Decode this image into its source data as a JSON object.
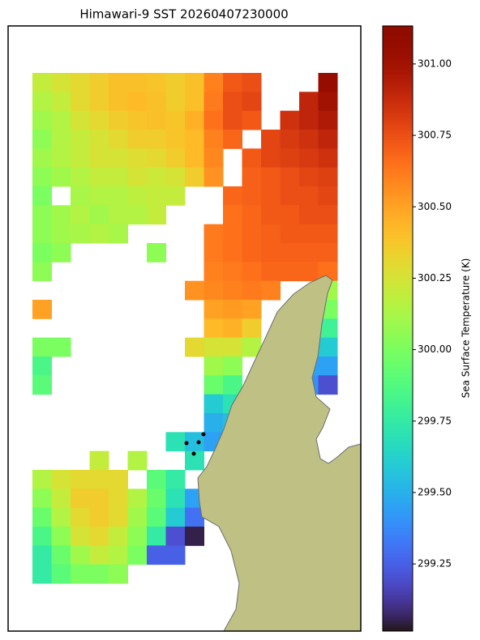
{
  "chart_data": {
    "type": "heatmap",
    "title": "Himawari-9 SST 20260407230000",
    "colorbar_label": "Sea Surface Temperature (K)",
    "colormap": "turbo",
    "vlim": [
      299.015,
      301.133
    ],
    "ticks": [
      {
        "value": 299.25,
        "label": "299.25"
      },
      {
        "value": 299.5,
        "label": "299.50"
      },
      {
        "value": 299.75,
        "label": "299.75"
      },
      {
        "value": 300,
        "label": "300.00"
      },
      {
        "value": 300.25,
        "label": "300.25"
      },
      {
        "value": 300.5,
        "label": "300.50"
      },
      {
        "value": 300.75,
        "label": "300.75"
      },
      {
        "value": 301,
        "label": "301.00"
      }
    ],
    "values": [
      [
        300.2,
        300.25,
        300.3,
        300.35,
        300.4,
        300.4,
        300.38,
        300.35,
        300.4,
        300.6,
        300.72,
        300.75,
        null,
        null,
        null,
        301.05
      ],
      [
        300.15,
        300.2,
        300.3,
        300.35,
        300.4,
        300.42,
        300.4,
        300.35,
        300.4,
        300.62,
        300.75,
        300.78,
        null,
        null,
        300.9,
        301.0
      ],
      [
        300.1,
        300.15,
        300.25,
        300.3,
        300.35,
        300.38,
        300.4,
        300.38,
        300.45,
        300.65,
        300.75,
        300.72,
        null,
        300.85,
        300.9,
        300.95
      ],
      [
        300.05,
        300.15,
        300.2,
        300.25,
        300.3,
        300.35,
        300.35,
        300.38,
        300.42,
        300.6,
        300.68,
        null,
        300.78,
        300.82,
        300.85,
        300.9
      ],
      [
        300.1,
        300.15,
        300.2,
        300.25,
        300.25,
        300.28,
        300.3,
        300.35,
        300.42,
        300.58,
        null,
        300.72,
        300.78,
        300.8,
        300.82,
        300.85
      ],
      [
        300.05,
        300.1,
        300.15,
        300.2,
        300.2,
        300.25,
        300.22,
        300.25,
        300.35,
        300.55,
        null,
        300.7,
        300.72,
        300.75,
        300.78,
        300.8
      ],
      [
        300.0,
        null,
        300.12,
        300.15,
        300.15,
        300.18,
        300.2,
        300.2,
        null,
        null,
        300.68,
        300.7,
        300.72,
        300.75,
        300.75,
        300.78
      ],
      [
        300.05,
        300.1,
        300.15,
        300.1,
        300.15,
        300.15,
        300.2,
        null,
        null,
        null,
        300.65,
        300.68,
        300.72,
        300.72,
        300.75,
        300.75
      ],
      [
        300.05,
        300.1,
        300.12,
        300.15,
        300.12,
        null,
        null,
        null,
        null,
        300.62,
        300.65,
        300.68,
        300.7,
        300.72,
        300.72,
        300.72
      ],
      [
        300.0,
        300.05,
        null,
        null,
        null,
        null,
        300.05,
        null,
        null,
        300.62,
        300.65,
        300.68,
        300.7,
        300.7,
        300.7,
        300.7
      ],
      [
        300.05,
        null,
        null,
        null,
        null,
        null,
        null,
        null,
        null,
        300.6,
        300.62,
        300.65,
        300.68,
        300.68,
        300.68,
        300.65
      ],
      [
        null,
        null,
        null,
        null,
        null,
        null,
        null,
        null,
        300.55,
        300.58,
        300.6,
        300.62,
        300.6,
        null,
        null,
        300.1
      ],
      [
        300.5,
        null,
        null,
        null,
        null,
        null,
        null,
        null,
        null,
        300.5,
        300.52,
        300.5,
        null,
        null,
        null,
        300.0
      ],
      [
        null,
        null,
        null,
        null,
        null,
        null,
        null,
        null,
        null,
        300.42,
        300.45,
        300.35,
        null,
        null,
        null,
        299.8
      ],
      [
        300.0,
        300.0,
        null,
        null,
        null,
        null,
        null,
        null,
        300.3,
        300.25,
        300.25,
        300.15,
        null,
        null,
        299.55,
        299.6
      ],
      [
        299.85,
        null,
        null,
        null,
        null,
        null,
        null,
        null,
        null,
        300.1,
        300.05,
        null,
        null,
        null,
        299.45,
        299.45
      ],
      [
        299.9,
        null,
        null,
        null,
        null,
        null,
        null,
        null,
        null,
        299.95,
        299.85,
        null,
        null,
        null,
        299.4,
        299.2
      ],
      [
        null,
        null,
        null,
        null,
        null,
        null,
        null,
        null,
        null,
        299.6,
        299.7,
        null,
        null,
        null,
        null,
        null
      ],
      [
        null,
        null,
        null,
        null,
        null,
        null,
        null,
        null,
        null,
        299.5,
        299.55,
        null,
        null,
        null,
        null,
        null
      ],
      [
        null,
        null,
        null,
        null,
        null,
        null,
        null,
        299.7,
        299.55,
        299.45,
        null,
        null,
        null,
        null,
        null,
        null
      ],
      [
        null,
        null,
        null,
        300.2,
        null,
        300.15,
        null,
        null,
        299.7,
        null,
        null,
        null,
        null,
        null,
        null,
        null
      ],
      [
        300.15,
        300.25,
        300.3,
        300.3,
        300.3,
        null,
        299.9,
        299.75,
        null,
        null,
        null,
        null,
        null,
        null,
        null,
        null
      ],
      [
        300.05,
        300.2,
        300.35,
        300.35,
        300.3,
        300.15,
        299.95,
        299.7,
        299.45,
        null,
        null,
        null,
        null,
        null,
        null,
        null
      ],
      [
        299.95,
        300.15,
        300.3,
        300.35,
        300.3,
        300.1,
        299.9,
        299.6,
        299.3,
        null,
        null,
        null,
        null,
        null,
        null,
        null
      ],
      [
        299.85,
        300.05,
        300.25,
        300.3,
        300.2,
        300.05,
        299.75,
        299.2,
        299.05,
        null,
        null,
        null,
        null,
        null,
        null,
        null
      ],
      [
        299.75,
        299.95,
        300.1,
        300.2,
        300.15,
        300.0,
        299.25,
        299.25,
        null,
        null,
        null,
        null,
        null,
        null,
        null,
        null
      ],
      [
        299.75,
        299.9,
        300.0,
        300.0,
        300.05,
        null,
        null,
        null,
        null,
        null,
        null,
        null,
        null,
        null,
        null,
        null
      ]
    ]
  }
}
